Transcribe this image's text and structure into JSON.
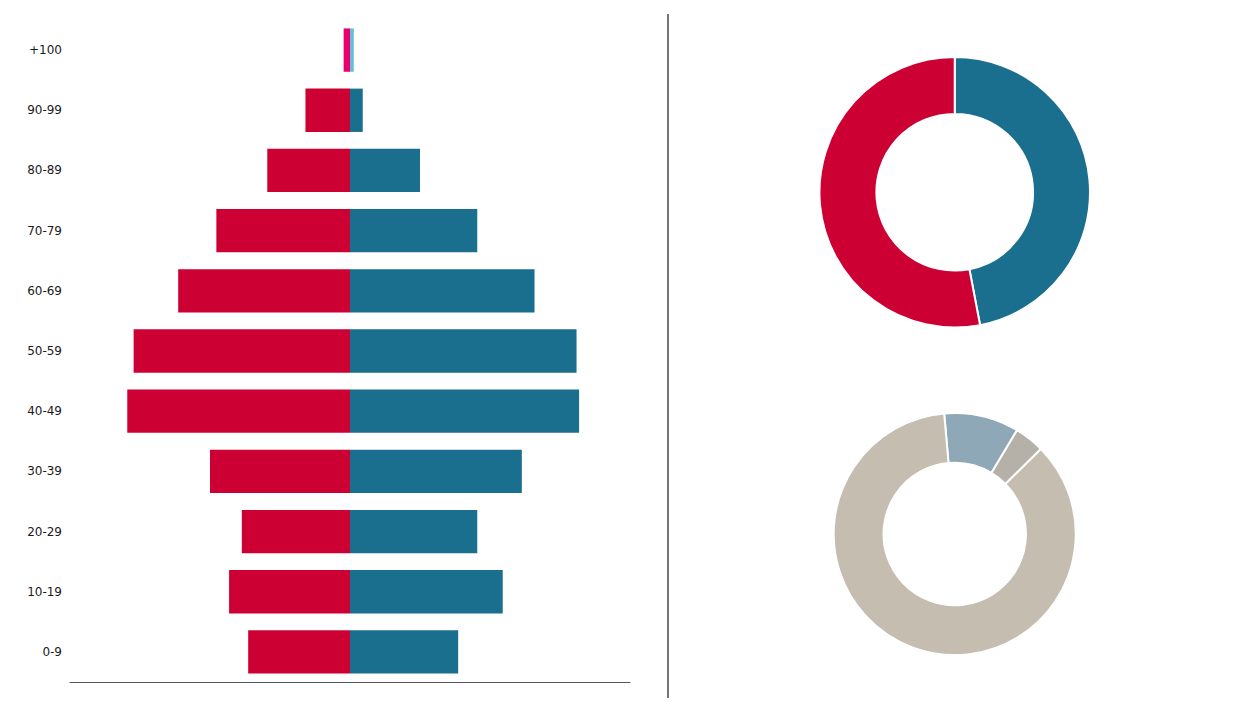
{
  "chart_data": [
    {
      "type": "bar",
      "orientation": "horizontal",
      "categories": [
        "0-9",
        "10-19",
        "20-29",
        "30-39",
        "40-49",
        "50-59",
        "60-69",
        "70-79",
        "80-89",
        "90-99",
        "+100"
      ],
      "series": [
        {
          "values": [
            8.0,
            9.5,
            8.5,
            11.0,
            17.5,
            17.0,
            13.5,
            10.5,
            6.5,
            3.5,
            0.5
          ],
          "colors": [
            "#CC0033",
            "#CC0033",
            "#CC0033",
            "#CC0033",
            "#CC0033",
            "#CC0033",
            "#CC0033",
            "#CC0033",
            "#CC0033",
            "#CC0033",
            "#E8006A"
          ]
        },
        {
          "values": [
            8.5,
            12.0,
            10.0,
            13.5,
            18.0,
            17.8,
            14.5,
            10.0,
            5.5,
            1.0,
            0.3
          ],
          "colors": [
            "#1A6E8E",
            "#1A6E8E",
            "#1A6E8E",
            "#1A6E8E",
            "#1A6E8E",
            "#1A6E8E",
            "#1A6E8E",
            "#1A6E8E",
            "#1A6E8E",
            "#1A6E8E",
            "#6BBCD8"
          ]
        }
      ],
      "xlim": [
        -22,
        22
      ],
      "grid": false,
      "tick_labels": "y"
    },
    {
      "type": "pie",
      "values": [
        47,
        53
      ],
      "colors": [
        "#1A6E8E",
        "#CC0033"
      ]
    },
    {
      "type": "pie",
      "values": [
        10,
        4,
        86
      ],
      "colors": [
        "#8FA8B8",
        "#B5B0A8",
        "#C5BDB0"
      ]
    }
  ]
}
